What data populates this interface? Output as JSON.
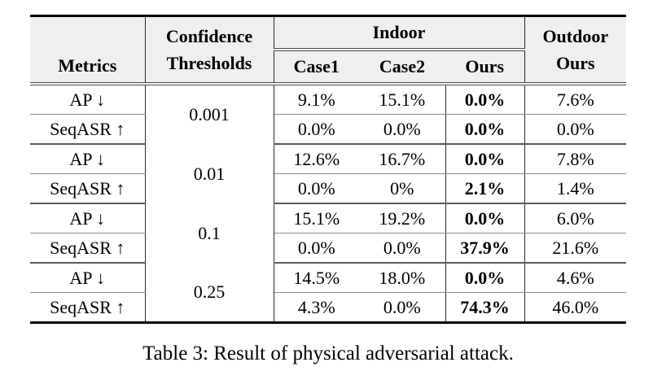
{
  "colors": {
    "header_background": "#efefef",
    "thick_rule": "#000000",
    "thin_rule": "#8c8c8c",
    "group_rule": "#5a5a5a",
    "text": "#000000"
  },
  "table": {
    "header": {
      "metrics": "Metrics",
      "confidence_line1": "Confidence",
      "confidence_line2": "Thresholds",
      "indoor": "Indoor",
      "outdoor_line1": "Outdoor",
      "outdoor_line2": "Ours",
      "case1": "Case1",
      "case2": "Case2",
      "ours": "Ours"
    },
    "groups": [
      {
        "threshold": "0.001",
        "rows": [
          {
            "metric": "AP ↓",
            "case1": "9.1%",
            "case2": "15.1%",
            "ours": "0.0%",
            "outdoor": "7.6%"
          },
          {
            "metric": "SeqASR ↑",
            "case1": "0.0%",
            "case2": "0.0%",
            "ours": "0.0%",
            "outdoor": "0.0%"
          }
        ]
      },
      {
        "threshold": "0.01",
        "rows": [
          {
            "metric": "AP ↓",
            "case1": "12.6%",
            "case2": "16.7%",
            "ours": "0.0%",
            "outdoor": "7.8%"
          },
          {
            "metric": "SeqASR ↑",
            "case1": "0.0%",
            "case2": "0%",
            "ours": "2.1%",
            "outdoor": "1.4%"
          }
        ]
      },
      {
        "threshold": "0.1",
        "rows": [
          {
            "metric": "AP ↓",
            "case1": "15.1%",
            "case2": "19.2%",
            "ours": "0.0%",
            "outdoor": "6.0%"
          },
          {
            "metric": "SeqASR ↑",
            "case1": "0.0%",
            "case2": "0.0%",
            "ours": "37.9%",
            "outdoor": "21.6%"
          }
        ]
      },
      {
        "threshold": "0.25",
        "rows": [
          {
            "metric": "AP ↓",
            "case1": "14.5%",
            "case2": "18.0%",
            "ours": "0.0%",
            "outdoor": "4.6%"
          },
          {
            "metric": "SeqASR ↑",
            "case1": "4.3%",
            "case2": "0.0%",
            "ours": "74.3%",
            "outdoor": "46.0%"
          }
        ]
      }
    ],
    "caption": "Table 3: Result of physical adversarial attack."
  }
}
